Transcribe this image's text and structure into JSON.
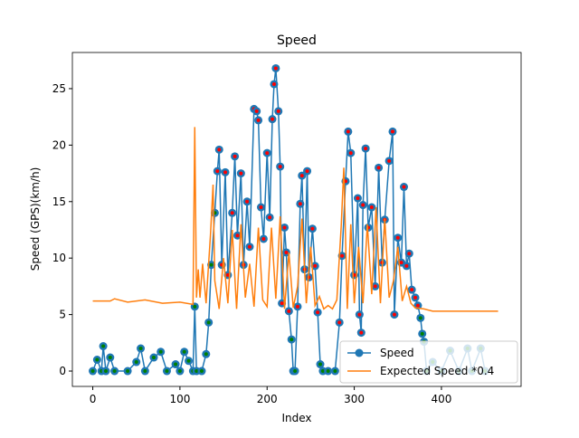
{
  "chart_data": {
    "type": "line",
    "title": "Speed",
    "xlabel": "Index",
    "ylabel": "Speed (GPS)(km/h)",
    "xlim": [
      -23.4,
      491.4
    ],
    "ylim": [
      -1.36,
      28.2
    ],
    "xticks": [
      0,
      100,
      200,
      300,
      400
    ],
    "yticks": [
      0,
      5,
      10,
      15,
      20,
      25
    ],
    "legend": "lower right",
    "series": [
      {
        "name": "Speed",
        "color": "#1f77b4",
        "markers": true,
        "x": [
          0,
          5,
          10,
          12,
          15,
          20,
          25,
          40,
          50,
          55,
          60,
          70,
          78,
          85,
          95,
          100,
          105,
          110,
          115,
          117,
          119,
          125,
          130,
          133,
          136,
          140,
          143,
          145,
          148,
          152,
          155,
          160,
          163,
          166,
          170,
          173,
          177,
          180,
          185,
          188,
          190,
          193,
          196,
          200,
          203,
          206,
          208,
          210,
          213,
          215,
          217,
          220,
          222,
          225,
          228,
          230,
          232,
          235,
          238,
          240,
          243,
          246,
          248,
          252,
          255,
          258,
          261,
          264,
          270,
          278,
          283,
          286,
          290,
          293,
          296,
          300,
          304,
          306,
          308,
          310,
          313,
          316,
          320,
          324,
          328,
          332,
          335,
          340,
          344,
          346,
          350,
          354,
          357,
          360,
          363,
          366,
          370,
          373,
          376,
          378,
          380,
          383,
          390,
          400,
          410,
          420,
          430,
          435,
          445,
          450
        ],
        "values": [
          0,
          1,
          0,
          2.2,
          0,
          1.2,
          0,
          0,
          0.8,
          2,
          0,
          1.2,
          1.7,
          0,
          0.6,
          0,
          1.7,
          0.9,
          0,
          5.7,
          0,
          0,
          1.5,
          4.3,
          9.4,
          14,
          17.7,
          19.6,
          9.4,
          17.6,
          8.5,
          14,
          19,
          12,
          17.5,
          9.4,
          15,
          11,
          23.2,
          23,
          22.2,
          14.5,
          11.7,
          19.3,
          13.6,
          22.3,
          25.4,
          26.8,
          23,
          18.1,
          6,
          12.7,
          10.5,
          5.3,
          2.8,
          0,
          0,
          5.7,
          14.8,
          17.3,
          9,
          17.7,
          8.3,
          12.6,
          9.3,
          5.2,
          0.6,
          0,
          0,
          0,
          4.3,
          10.2,
          16.8,
          21.2,
          19.3,
          8.5,
          15.3,
          5,
          3.4,
          14.7,
          19.7,
          12.7,
          14.5,
          7.5,
          18,
          9.6,
          13.4,
          18.6,
          21.2,
          5,
          11.8,
          9.6,
          16.3,
          9.3,
          10.4,
          7.2,
          6.5,
          5.8,
          4.7,
          3.3,
          2.6,
          0,
          0.8,
          0,
          1.8,
          0,
          2,
          0,
          2,
          0
        ],
        "point_colors": [
          "green",
          "green",
          "green",
          "green",
          "green",
          "green",
          "green",
          "green",
          "green",
          "green",
          "green",
          "green",
          "green",
          "green",
          "green",
          "green",
          "green",
          "green",
          "green",
          "green",
          "green",
          "green",
          "green",
          "green",
          "green",
          "green",
          "red",
          "red",
          "red",
          "red",
          "red",
          "red",
          "red",
          "red",
          "red",
          "red",
          "red",
          "red",
          "red",
          "red",
          "red",
          "red",
          "red",
          "red",
          "red",
          "red",
          "red",
          "red",
          "red",
          "red",
          "red",
          "red",
          "red",
          "red",
          "green",
          "green",
          "green",
          "red",
          "red",
          "red",
          "red",
          "red",
          "red",
          "red",
          "red",
          "red",
          "green",
          "green",
          "green",
          "green",
          "red",
          "red",
          "red",
          "red",
          "red",
          "red",
          "red",
          "red",
          "red",
          "red",
          "red",
          "red",
          "red",
          "red",
          "red",
          "red",
          "red",
          "red",
          "red",
          "red",
          "red",
          "red",
          "red",
          "red",
          "red",
          "red",
          "red",
          "red",
          "green",
          "green",
          "green",
          "green",
          "green",
          "green",
          "green",
          "green",
          "green",
          "green",
          "green",
          "green"
        ]
      },
      {
        "name": "Expected Speed *0.4",
        "color": "#ff7f0e",
        "markers": false,
        "x": [
          0,
          20,
          25,
          40,
          60,
          80,
          100,
          115,
          117,
          119,
          121,
          123,
          126,
          130,
          135,
          138,
          140,
          145,
          150,
          155,
          160,
          165,
          170,
          175,
          180,
          185,
          190,
          195,
          200,
          205,
          210,
          215,
          220,
          225,
          230,
          235,
          240,
          245,
          250,
          255,
          260,
          265,
          270,
          275,
          280,
          285,
          288,
          292,
          296,
          300,
          305,
          310,
          315,
          320,
          325,
          330,
          335,
          340,
          345,
          350,
          355,
          360,
          365,
          370,
          380,
          390,
          420,
          465
        ],
        "values": [
          6.2,
          6.2,
          6.4,
          6.1,
          6.3,
          6.0,
          6.1,
          5.9,
          21.6,
          6.5,
          9,
          6.5,
          9.5,
          6,
          12,
          16.5,
          8,
          5.5,
          10,
          6,
          12.5,
          5.5,
          13,
          6.5,
          9.5,
          5.7,
          12.7,
          6.3,
          5.7,
          12.7,
          6.4,
          13.7,
          5.5,
          10.5,
          5.6,
          7.5,
          13.5,
          6,
          11,
          5.8,
          6.6,
          5.5,
          5.8,
          5.5,
          6.3,
          12.8,
          18,
          5.5,
          13,
          6,
          11,
          6,
          13,
          6.8,
          14.5,
          6,
          13.5,
          6.5,
          8,
          11,
          6.2,
          7.5,
          6,
          5.6,
          5.5,
          5.3,
          5.3,
          5.3
        ]
      }
    ]
  }
}
